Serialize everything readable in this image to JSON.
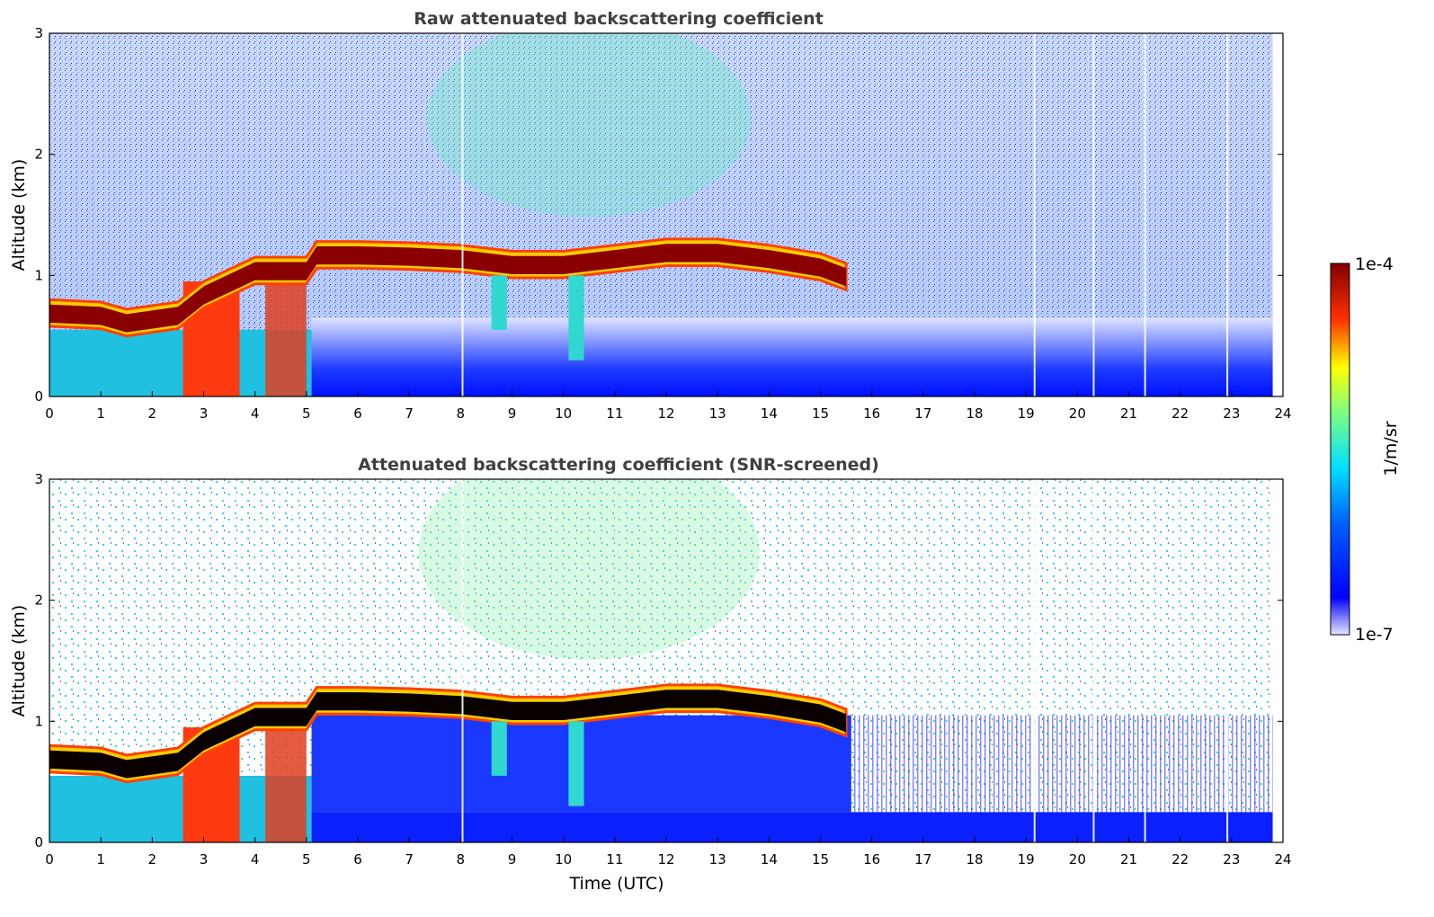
{
  "chart_data": [
    {
      "type": "heatmap",
      "title": "Raw attenuated backscattering coefficient",
      "xlabel": "",
      "ylabel": "Altitude (km)",
      "xlim": [
        0,
        24
      ],
      "ylim": [
        0,
        3
      ],
      "xticks": [
        "0",
        "1",
        "2",
        "3",
        "4",
        "5",
        "6",
        "7",
        "8",
        "9",
        "10",
        "11",
        "12",
        "13",
        "14",
        "15",
        "16",
        "17",
        "18",
        "19",
        "20",
        "21",
        "22",
        "23",
        "24"
      ],
      "yticks": [
        "0",
        "1",
        "2",
        "3"
      ],
      "cloud_layer_top_km": {
        "time": [
          0,
          1,
          1.5,
          2.5,
          3,
          4,
          5,
          5.2,
          6,
          7,
          8,
          9,
          10,
          11,
          12,
          13,
          14,
          15,
          15.5
        ],
        "altitude": [
          0.8,
          0.78,
          0.72,
          0.78,
          0.95,
          1.15,
          1.15,
          1.28,
          1.28,
          1.27,
          1.25,
          1.2,
          1.2,
          1.25,
          1.3,
          1.3,
          1.25,
          1.18,
          1.1
        ]
      },
      "screened": false
    },
    {
      "type": "heatmap",
      "title": "Attenuated backscattering coefficient (SNR-screened)",
      "xlabel": "Time (UTC)",
      "ylabel": "Altitude (km)",
      "xlim": [
        0,
        24
      ],
      "ylim": [
        0,
        3
      ],
      "xticks": [
        "0",
        "1",
        "2",
        "3",
        "4",
        "5",
        "6",
        "7",
        "8",
        "9",
        "10",
        "11",
        "12",
        "13",
        "14",
        "15",
        "16",
        "17",
        "18",
        "19",
        "20",
        "21",
        "22",
        "23",
        "24"
      ],
      "yticks": [
        "0",
        "1",
        "2",
        "3"
      ],
      "cloud_layer_top_km": {
        "time": [
          0,
          1,
          1.5,
          2.5,
          3,
          4,
          5,
          5.2,
          6,
          7,
          8,
          9,
          10,
          11,
          12,
          13,
          14,
          15,
          15.5
        ],
        "altitude": [
          0.8,
          0.78,
          0.72,
          0.78,
          0.95,
          1.15,
          1.15,
          1.28,
          1.28,
          1.27,
          1.25,
          1.2,
          1.2,
          1.25,
          1.3,
          1.3,
          1.25,
          1.18,
          1.1
        ]
      },
      "screened": true
    }
  ],
  "colorbar": {
    "label": "1/m/sr",
    "max_label": "1e-4",
    "min_label": "1e-7",
    "colors": [
      "#800000",
      "#ff0000",
      "#ffff00",
      "#00ffff",
      "#0000ff",
      "#e0e0ff"
    ]
  }
}
